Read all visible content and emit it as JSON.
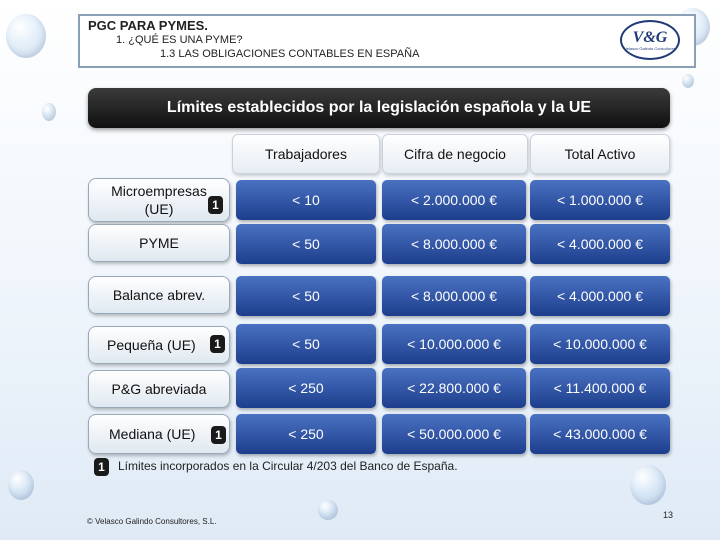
{
  "header": {
    "title": "PGC PARA PYMES.",
    "subtitle": "1. ¿QUÉ ES UNA PYME?",
    "section": "1.3 LAS OBLIGACIONES CONTABLES EN ESPAÑA",
    "logo_text": "V&G",
    "logo_sub": "Velasco Galindo Consultores"
  },
  "banner": {
    "title": "Límites establecidos por la legislación española y la UE"
  },
  "table": {
    "columns": [
      "Trabajadores",
      "Cifra de negocio",
      "Total Activo"
    ],
    "rows": [
      {
        "label": "Microempresas (UE)",
        "badge": "1",
        "values": [
          "< 10",
          "< 2.000.000 €",
          "< 1.000.000 €"
        ]
      },
      {
        "label": "PYME",
        "badge": "",
        "values": [
          "< 50",
          "< 8.000.000 €",
          "< 4.000.000 €"
        ]
      },
      {
        "label": "Balance abrev.",
        "badge": "",
        "values": [
          "< 50",
          "< 8.000.000 €",
          "< 4.000.000 €"
        ]
      },
      {
        "label": "Pequeña (UE)",
        "badge": "1",
        "values": [
          "< 50",
          "< 10.000.000 €",
          "< 10.000.000 €"
        ]
      },
      {
        "label": "P&G abreviada",
        "badge": "",
        "values": [
          "< 250",
          "< 22.800.000 €",
          "< 11.400.000 €"
        ]
      },
      {
        "label": "Mediana (UE)",
        "badge": "1",
        "values": [
          "< 250",
          "< 50.000.000 €",
          "< 43.000.000 €"
        ]
      }
    ]
  },
  "footnote": {
    "badge": "1",
    "text": "Límites incorporados en la Circular 4/203 del Banco de España."
  },
  "footer": {
    "copyright": "© Velasco Galindo Consultores, S.L.",
    "page_number": "13"
  },
  "colors": {
    "value_cell": "#2a4f9f",
    "banner": "#1a1a1a",
    "frame": "#8aa0b6"
  }
}
